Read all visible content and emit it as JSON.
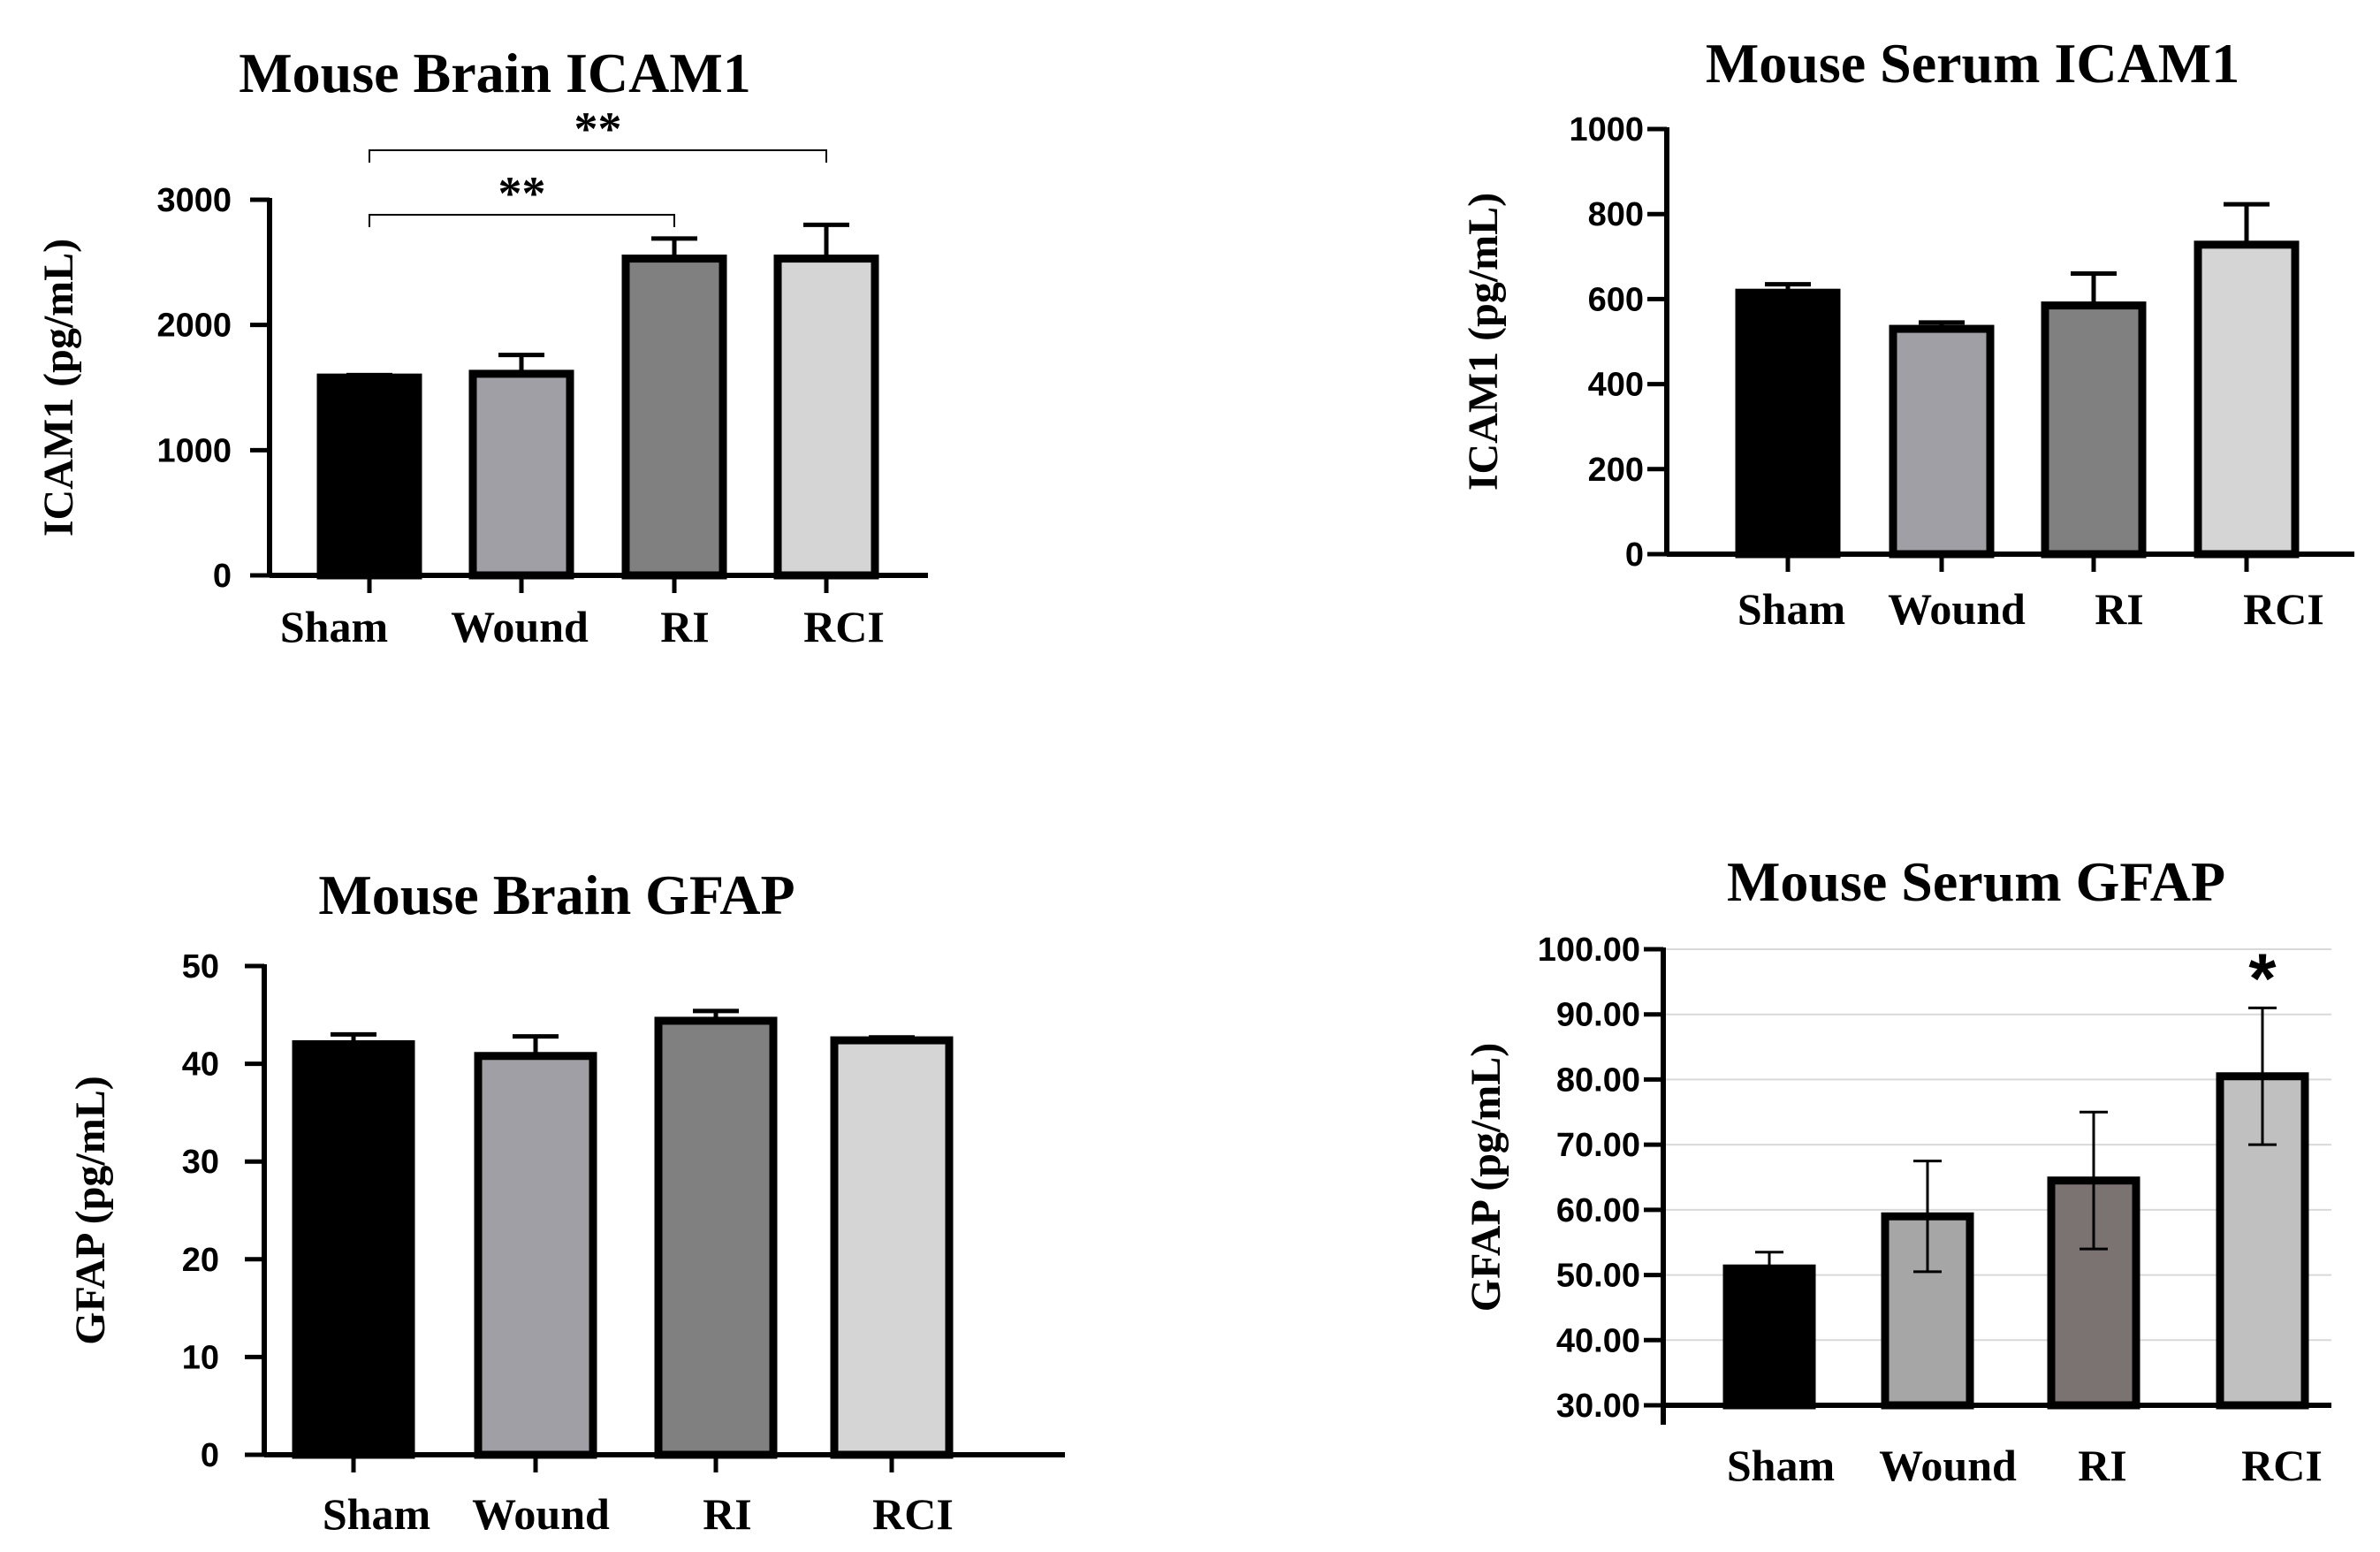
{
  "chart_data": [
    {
      "type": "bar",
      "title": "Mouse Brain ICAM1",
      "ylabel": "ICAM1 (pg/mL)",
      "xlabel": "",
      "categories": [
        "Sham",
        "Wound",
        "RI",
        "RCI"
      ],
      "values": [
        1580,
        1610,
        2530,
        2530
      ],
      "errors": [
        20,
        150,
        160,
        270
      ],
      "ylim": [
        0,
        3000
      ],
      "yticks": [
        "0",
        "1000",
        "2000",
        "3000"
      ],
      "ytick_values": [
        0,
        1000,
        2000,
        3000
      ],
      "colors": [
        "#000000",
        "#a19fa6",
        "#808080",
        "#d5d5d5"
      ],
      "grid": false,
      "significance": [
        {
          "from": 0,
          "to": 2,
          "label": "**"
        },
        {
          "from": 0,
          "to": 3,
          "label": "**"
        }
      ]
    },
    {
      "type": "bar",
      "title": "Mouse Serum ICAM1",
      "ylabel": "ICAM1 (pg/mL)",
      "xlabel": "",
      "categories": [
        "Sham",
        "Wound",
        "RI",
        "RCI"
      ],
      "values": [
        615,
        530,
        585,
        728
      ],
      "errors": [
        20,
        15,
        75,
        95
      ],
      "ylim": [
        0,
        1000
      ],
      "yticks": [
        "0",
        "200",
        "400",
        "600",
        "800",
        "1000"
      ],
      "ytick_values": [
        0,
        200,
        400,
        600,
        800,
        1000
      ],
      "colors": [
        "#000000",
        "#a19fa6",
        "#808080",
        "#d5d5d5"
      ],
      "grid": false,
      "significance": []
    },
    {
      "type": "bar",
      "title": "Mouse Brain GFAP",
      "ylabel": "GFAP (pg/mL)",
      "xlabel": "",
      "categories": [
        "Sham",
        "Wound",
        "RI",
        "RCI"
      ],
      "values": [
        42.0,
        40.8,
        44.4,
        42.4
      ],
      "errors": [
        1.0,
        2.0,
        1.0,
        0.3
      ],
      "ylim": [
        0,
        50
      ],
      "yticks": [
        "0",
        "10",
        "20",
        "30",
        "40",
        "50"
      ],
      "ytick_values": [
        0,
        10,
        20,
        30,
        40,
        50
      ],
      "colors": [
        "#000000",
        "#a19fa6",
        "#808080",
        "#d5d5d5"
      ],
      "grid": false,
      "significance": []
    },
    {
      "type": "bar",
      "title": "Mouse Serum GFAP",
      "ylabel": "GFAP (pg/mL)",
      "xlabel": "",
      "categories": [
        "Sham",
        "Wound",
        "RI",
        "RCI"
      ],
      "values": [
        51.0,
        59.0,
        64.5,
        80.5
      ],
      "errors": [
        2.5,
        8.5,
        10.5,
        10.5
      ],
      "ylim": [
        30,
        100
      ],
      "yticks": [
        "30.00",
        "40.00",
        "50.00",
        "60.00",
        "70.00",
        "80.00",
        "90.00",
        "100.00"
      ],
      "ytick_values": [
        30,
        40,
        50,
        60,
        70,
        80,
        90,
        100
      ],
      "colors": [
        "#000000",
        "#a6a6a6",
        "#7b7272",
        "#c0c0c0"
      ],
      "grid": true,
      "significance": [
        {
          "bar": 3,
          "label": "*"
        }
      ]
    }
  ]
}
